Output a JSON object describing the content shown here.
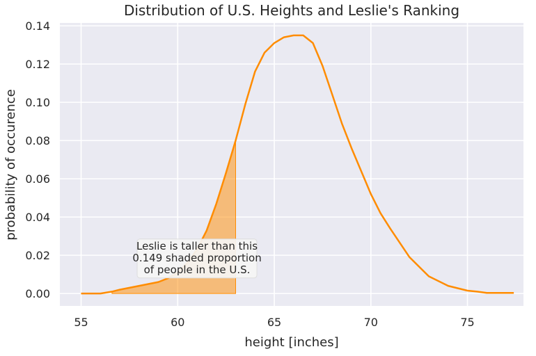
{
  "chart_data": {
    "type": "area",
    "title": "Distribution of U.S. Heights and Leslie's Ranking",
    "xlabel": "height [inches]",
    "ylabel": "probability of occurence",
    "xlim": [
      53.9,
      77.9
    ],
    "ylim": [
      -0.0065,
      0.1415
    ],
    "xticks": [
      55,
      60,
      65,
      70,
      75
    ],
    "yticks": [
      0.0,
      0.02,
      0.04,
      0.06,
      0.08,
      0.1,
      0.12,
      0.14
    ],
    "ytick_labels": [
      "0.00",
      "0.02",
      "0.04",
      "0.06",
      "0.08",
      "0.10",
      "0.12",
      "0.14"
    ],
    "grid": true,
    "background": "#eaeaf2",
    "grid_color": "#ffffff",
    "series": [
      {
        "color": "#ff8c00",
        "x": [
          55.0,
          56.0,
          56.6,
          57.0,
          58.0,
          59.0,
          59.5,
          60.0,
          60.5,
          61.0,
          61.5,
          62.0,
          62.5,
          63.0,
          63.5,
          64.0,
          64.5,
          65.0,
          65.5,
          66.0,
          66.5,
          67.0,
          67.5,
          68.0,
          68.5,
          69.0,
          69.5,
          70.0,
          70.5,
          71.0,
          72.0,
          73.0,
          74.0,
          75.0,
          75.5,
          76.0,
          76.5,
          77.0,
          77.4
        ],
        "y": [
          0.0,
          0.0,
          0.001,
          0.002,
          0.004,
          0.006,
          0.008,
          0.011,
          0.016,
          0.023,
          0.033,
          0.047,
          0.063,
          0.08,
          0.099,
          0.116,
          0.126,
          0.131,
          0.134,
          0.135,
          0.135,
          0.131,
          0.119,
          0.104,
          0.089,
          0.076,
          0.064,
          0.052,
          0.042,
          0.034,
          0.019,
          0.009,
          0.004,
          0.0015,
          0.001,
          0.0003,
          0.0003,
          0.0003,
          0.0003
        ]
      }
    ],
    "shaded_region": {
      "x_start": 56.6,
      "x_end": 63.0,
      "color": "#ff8c00",
      "opacity": 0.5
    },
    "annotation": {
      "lines": [
        "Leslie is taller than this",
        "0.149 shaded proportion",
        "of people in the U.S."
      ],
      "x": 61.0,
      "y": 0.0183
    }
  }
}
